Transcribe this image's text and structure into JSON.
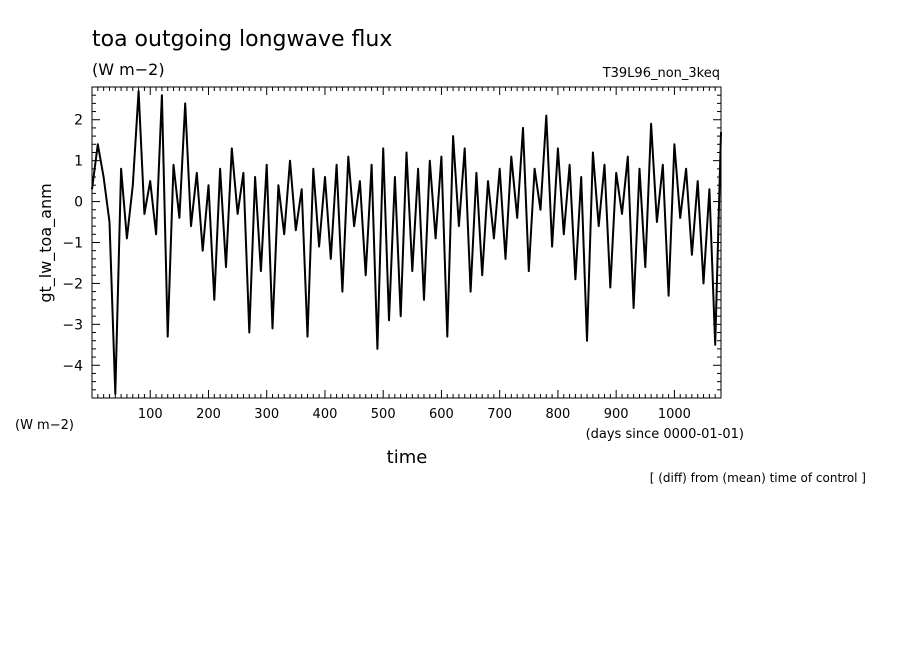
{
  "chart_data": {
    "type": "line",
    "title": "toa outgoing longwave flux",
    "subtitle": "(W m−2)",
    "run_label": "T39L96_non_3keq",
    "ylabel": "gt_lw_toa_anm",
    "yunit": "(W m−2)",
    "xlabel": "time",
    "xunit": "(days since 0000-01-01)",
    "note": "[ (diff) from (mean) time of control ]",
    "xlim": [
      0,
      1080
    ],
    "ylim": [
      -4.8,
      2.8
    ],
    "x_ticks": [
      100,
      200,
      300,
      400,
      500,
      600,
      700,
      800,
      900,
      1000
    ],
    "x_tick_labels": [
      "100",
      "200",
      "300",
      "400",
      "500",
      "600",
      "700",
      "800",
      "900",
      "1000"
    ],
    "y_ticks": [
      2,
      1,
      0,
      -1,
      -2,
      -3,
      -4
    ],
    "y_tick_labels": [
      "2",
      "1",
      "0",
      "−1",
      "−2",
      "−3",
      "−4"
    ],
    "grid": false,
    "line_color": "#000000",
    "x": [
      0,
      10,
      20,
      30,
      40,
      50,
      60,
      70,
      80,
      90,
      100,
      110,
      120,
      130,
      140,
      150,
      160,
      170,
      180,
      190,
      200,
      210,
      220,
      230,
      240,
      250,
      260,
      270,
      280,
      290,
      300,
      310,
      320,
      330,
      340,
      350,
      360,
      370,
      380,
      390,
      400,
      410,
      420,
      430,
      440,
      450,
      460,
      470,
      480,
      490,
      500,
      510,
      520,
      530,
      540,
      550,
      560,
      570,
      580,
      590,
      600,
      610,
      620,
      630,
      640,
      650,
      660,
      670,
      680,
      690,
      700,
      710,
      720,
      730,
      740,
      750,
      760,
      770,
      780,
      790,
      800,
      810,
      820,
      830,
      840,
      850,
      860,
      870,
      880,
      890,
      900,
      910,
      920,
      930,
      940,
      950,
      960,
      970,
      980,
      990,
      1000,
      1010,
      1020,
      1030,
      1040,
      1050,
      1060,
      1070,
      1080
    ],
    "y": [
      0.3,
      1.4,
      0.6,
      -0.5,
      -4.7,
      0.8,
      -0.9,
      0.4,
      2.7,
      -0.3,
      0.5,
      -0.8,
      2.6,
      -3.3,
      0.9,
      -0.4,
      2.4,
      -0.6,
      0.7,
      -1.2,
      0.4,
      -2.4,
      0.8,
      -1.6,
      1.3,
      -0.3,
      0.7,
      -3.2,
      0.6,
      -1.7,
      0.9,
      -3.1,
      0.4,
      -0.8,
      1.0,
      -0.7,
      0.3,
      -3.3,
      0.8,
      -1.1,
      0.6,
      -1.4,
      0.9,
      -2.2,
      1.1,
      -0.6,
      0.5,
      -1.8,
      0.9,
      -3.6,
      1.3,
      -2.9,
      0.6,
      -2.8,
      1.2,
      -1.7,
      0.8,
      -2.4,
      1.0,
      -0.9,
      1.1,
      -3.3,
      1.6,
      -0.6,
      1.3,
      -2.2,
      0.7,
      -1.8,
      0.5,
      -0.9,
      0.8,
      -1.4,
      1.1,
      -0.4,
      1.8,
      -1.7,
      0.8,
      -0.2,
      2.1,
      -1.1,
      1.3,
      -0.8,
      0.9,
      -1.9,
      0.6,
      -3.4,
      1.2,
      -0.6,
      0.9,
      -2.1,
      0.7,
      -0.3,
      1.1,
      -2.6,
      0.8,
      -1.6,
      1.9,
      -0.5,
      0.9,
      -2.3,
      1.4,
      -0.4,
      0.8,
      -1.3,
      0.5,
      -2.0,
      0.3,
      -3.5,
      1.7
    ]
  }
}
